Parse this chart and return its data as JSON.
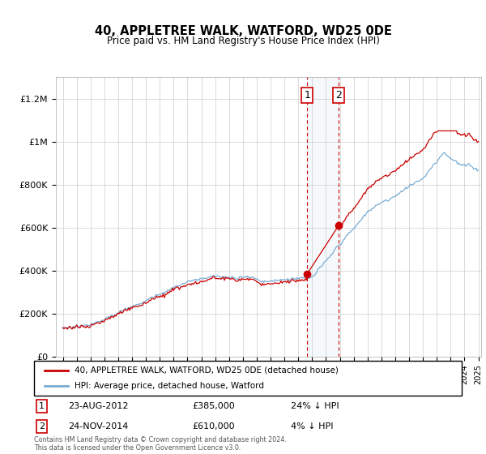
{
  "title": "40, APPLETREE WALK, WATFORD, WD25 0DE",
  "subtitle": "Price paid vs. HM Land Registry's House Price Index (HPI)",
  "legend_line1": "40, APPLETREE WALK, WATFORD, WD25 0DE (detached house)",
  "legend_line2": "HPI: Average price, detached house, Watford",
  "footnote": "Contains HM Land Registry data © Crown copyright and database right 2024.\nThis data is licensed under the Open Government Licence v3.0.",
  "sale1_date": "23-AUG-2012",
  "sale1_price": "£385,000",
  "sale1_hpi": "24% ↓ HPI",
  "sale2_date": "24-NOV-2014",
  "sale2_price": "£610,000",
  "sale2_hpi": "4% ↓ HPI",
  "red_color": "#cc0000",
  "blue_color": "#7aadd4",
  "sale1_x": 2012.65,
  "sale1_y": 385000,
  "sale2_x": 2014.92,
  "sale2_y": 610000,
  "shade_x1": 2012.65,
  "shade_x2": 2014.92,
  "ylim": [
    0,
    1300000
  ],
  "xlim": [
    1994.5,
    2025.2
  ]
}
